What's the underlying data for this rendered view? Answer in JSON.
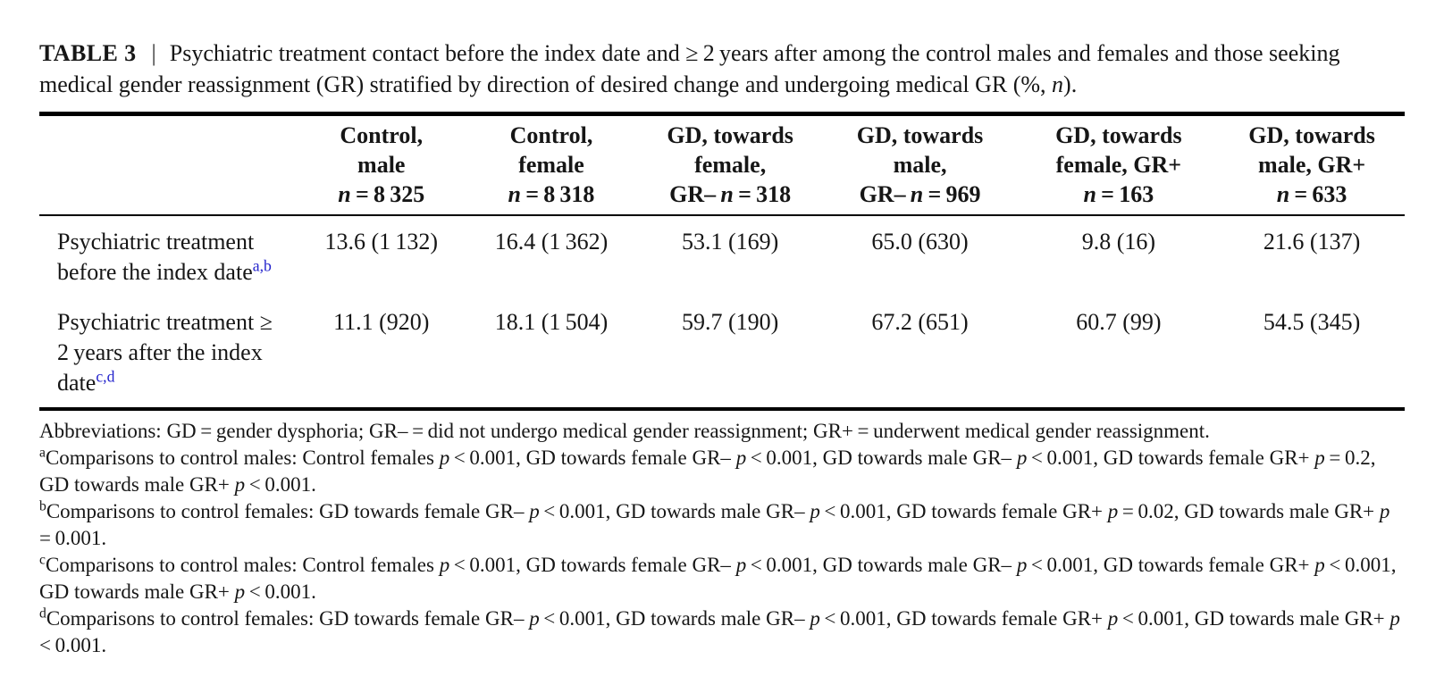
{
  "colors": {
    "text": "#161616",
    "rule": "#000000",
    "footnote_ref_link": "#2323cc",
    "background": "#ffffff"
  },
  "caption": {
    "label": "TABLE 3",
    "separator": "|",
    "text": "Psychiatric treatment contact before the index date and ≥ 2 years after among the control males and females and those seeking medical gender reassignment (GR) stratified by direction of desired change and undergoing medical GR (%, n)."
  },
  "table": {
    "columns": [
      {
        "lines": [
          "Control,",
          "male",
          "n = 8 325"
        ]
      },
      {
        "lines": [
          "Control,",
          "female",
          "n = 8 318"
        ]
      },
      {
        "lines": [
          "GD, towards",
          "female,",
          "GR– n = 318"
        ]
      },
      {
        "lines": [
          "GD, towards",
          "male,",
          "GR– n = 969"
        ]
      },
      {
        "lines": [
          "GD, towards",
          "female, GR+",
          "n = 163"
        ]
      },
      {
        "lines": [
          "GD, towards",
          "male, GR+",
          "n = 633"
        ]
      }
    ],
    "rows": [
      {
        "label": "Psychiatric treatment before the index date",
        "sup": "a,b",
        "values": [
          "13.6 (1 132)",
          "16.4 (1 362)",
          "53.1 (169)",
          "65.0 (630)",
          "9.8 (16)",
          "21.6 (137)"
        ]
      },
      {
        "label": "Psychiatric treatment ≥ 2 years after the index date",
        "sup": "c,d",
        "values": [
          "11.1 (920)",
          "18.1 (1 504)",
          "59.7 (190)",
          "67.2 (651)",
          "60.7 (99)",
          "54.5 (345)"
        ]
      }
    ]
  },
  "footnotes": {
    "abbreviations": "Abbreviations: GD = gender dysphoria; GR– = did not undergo medical gender reassignment; GR+ = underwent medical gender reassignment.",
    "items": [
      {
        "marker": "a",
        "text": "Comparisons to control males: Control females p < 0.001, GD towards female GR– p < 0.001, GD towards male GR– p < 0.001, GD towards female GR+ p = 0.2, GD towards male GR+ p < 0.001."
      },
      {
        "marker": "b",
        "text": "Comparisons to control females: GD towards female GR– p < 0.001, GD towards male GR– p < 0.001, GD towards female GR+ p = 0.02, GD towards male GR+ p = 0.001."
      },
      {
        "marker": "c",
        "text": "Comparisons to control males: Control females p < 0.001, GD towards female GR– p < 0.001, GD towards male GR– p < 0.001, GD towards female GR+ p < 0.001, GD towards male GR+ p < 0.001."
      },
      {
        "marker": "d",
        "text": "Comparisons to control females: GD towards female GR– p < 0.001, GD towards male GR– p < 0.001, GD towards female GR+ p < 0.001, GD towards male GR+ p < 0.001."
      }
    ]
  }
}
